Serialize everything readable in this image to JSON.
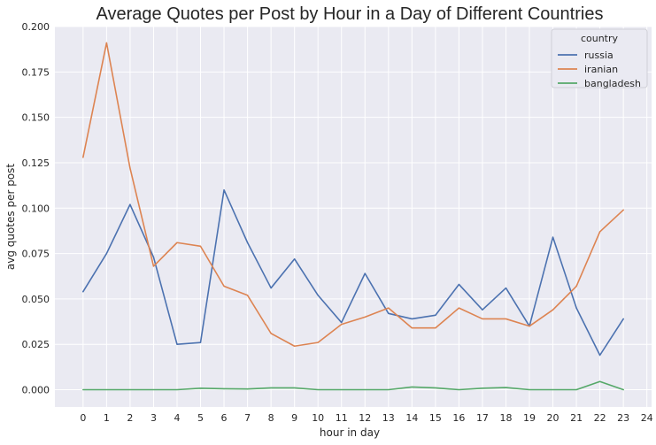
{
  "chart_data": {
    "type": "line",
    "title": "Average Quotes per Post by Hour in a Day of Different Countries",
    "xlabel": "hour in day",
    "ylabel": "avg quotes per post",
    "x": [
      0,
      1,
      2,
      3,
      4,
      5,
      6,
      7,
      8,
      9,
      10,
      11,
      12,
      13,
      14,
      15,
      16,
      17,
      18,
      19,
      20,
      21,
      22,
      23
    ],
    "xticks": [
      0,
      1,
      2,
      3,
      4,
      5,
      6,
      7,
      8,
      9,
      10,
      11,
      12,
      13,
      14,
      15,
      16,
      17,
      18,
      19,
      20,
      21,
      22,
      23,
      24
    ],
    "xlim": [
      -1.2,
      24.2
    ],
    "yticks": [
      0.0,
      0.025,
      0.05,
      0.075,
      0.1,
      0.125,
      0.15,
      0.175,
      0.2
    ],
    "ytick_labels": [
      "0.000",
      "0.025",
      "0.050",
      "0.075",
      "0.100",
      "0.125",
      "0.150",
      "0.175",
      "0.200"
    ],
    "ylim": [
      -0.0095,
      0.2
    ],
    "grid": true,
    "legend": {
      "title": "country",
      "placement": "top-right"
    },
    "series": [
      {
        "name": "russia",
        "color": "#4c72b0",
        "values": [
          0.054,
          0.075,
          0.102,
          0.073,
          0.025,
          0.026,
          0.11,
          0.081,
          0.056,
          0.072,
          0.052,
          0.037,
          0.064,
          0.042,
          0.039,
          0.041,
          0.058,
          0.044,
          0.056,
          0.035,
          0.084,
          0.045,
          0.019,
          0.039
        ]
      },
      {
        "name": "iranian",
        "color": "#dd8452",
        "values": [
          0.128,
          0.191,
          0.122,
          0.068,
          0.081,
          0.079,
          0.057,
          0.052,
          0.031,
          0.024,
          0.026,
          0.036,
          0.04,
          0.045,
          0.034,
          0.034,
          0.045,
          0.039,
          0.039,
          0.035,
          0.044,
          0.057,
          0.087,
          0.099
        ]
      },
      {
        "name": "bangladesh",
        "color": "#55a868",
        "values": [
          0.0,
          0.0,
          0.0,
          0.0,
          0.0,
          0.0008,
          0.0005,
          0.0004,
          0.001,
          0.001,
          0.0,
          0.0,
          0.0,
          0.0,
          0.0015,
          0.001,
          0.0,
          0.0008,
          0.0012,
          0.0,
          0.0,
          0.0,
          0.0045,
          0.0
        ]
      }
    ]
  }
}
